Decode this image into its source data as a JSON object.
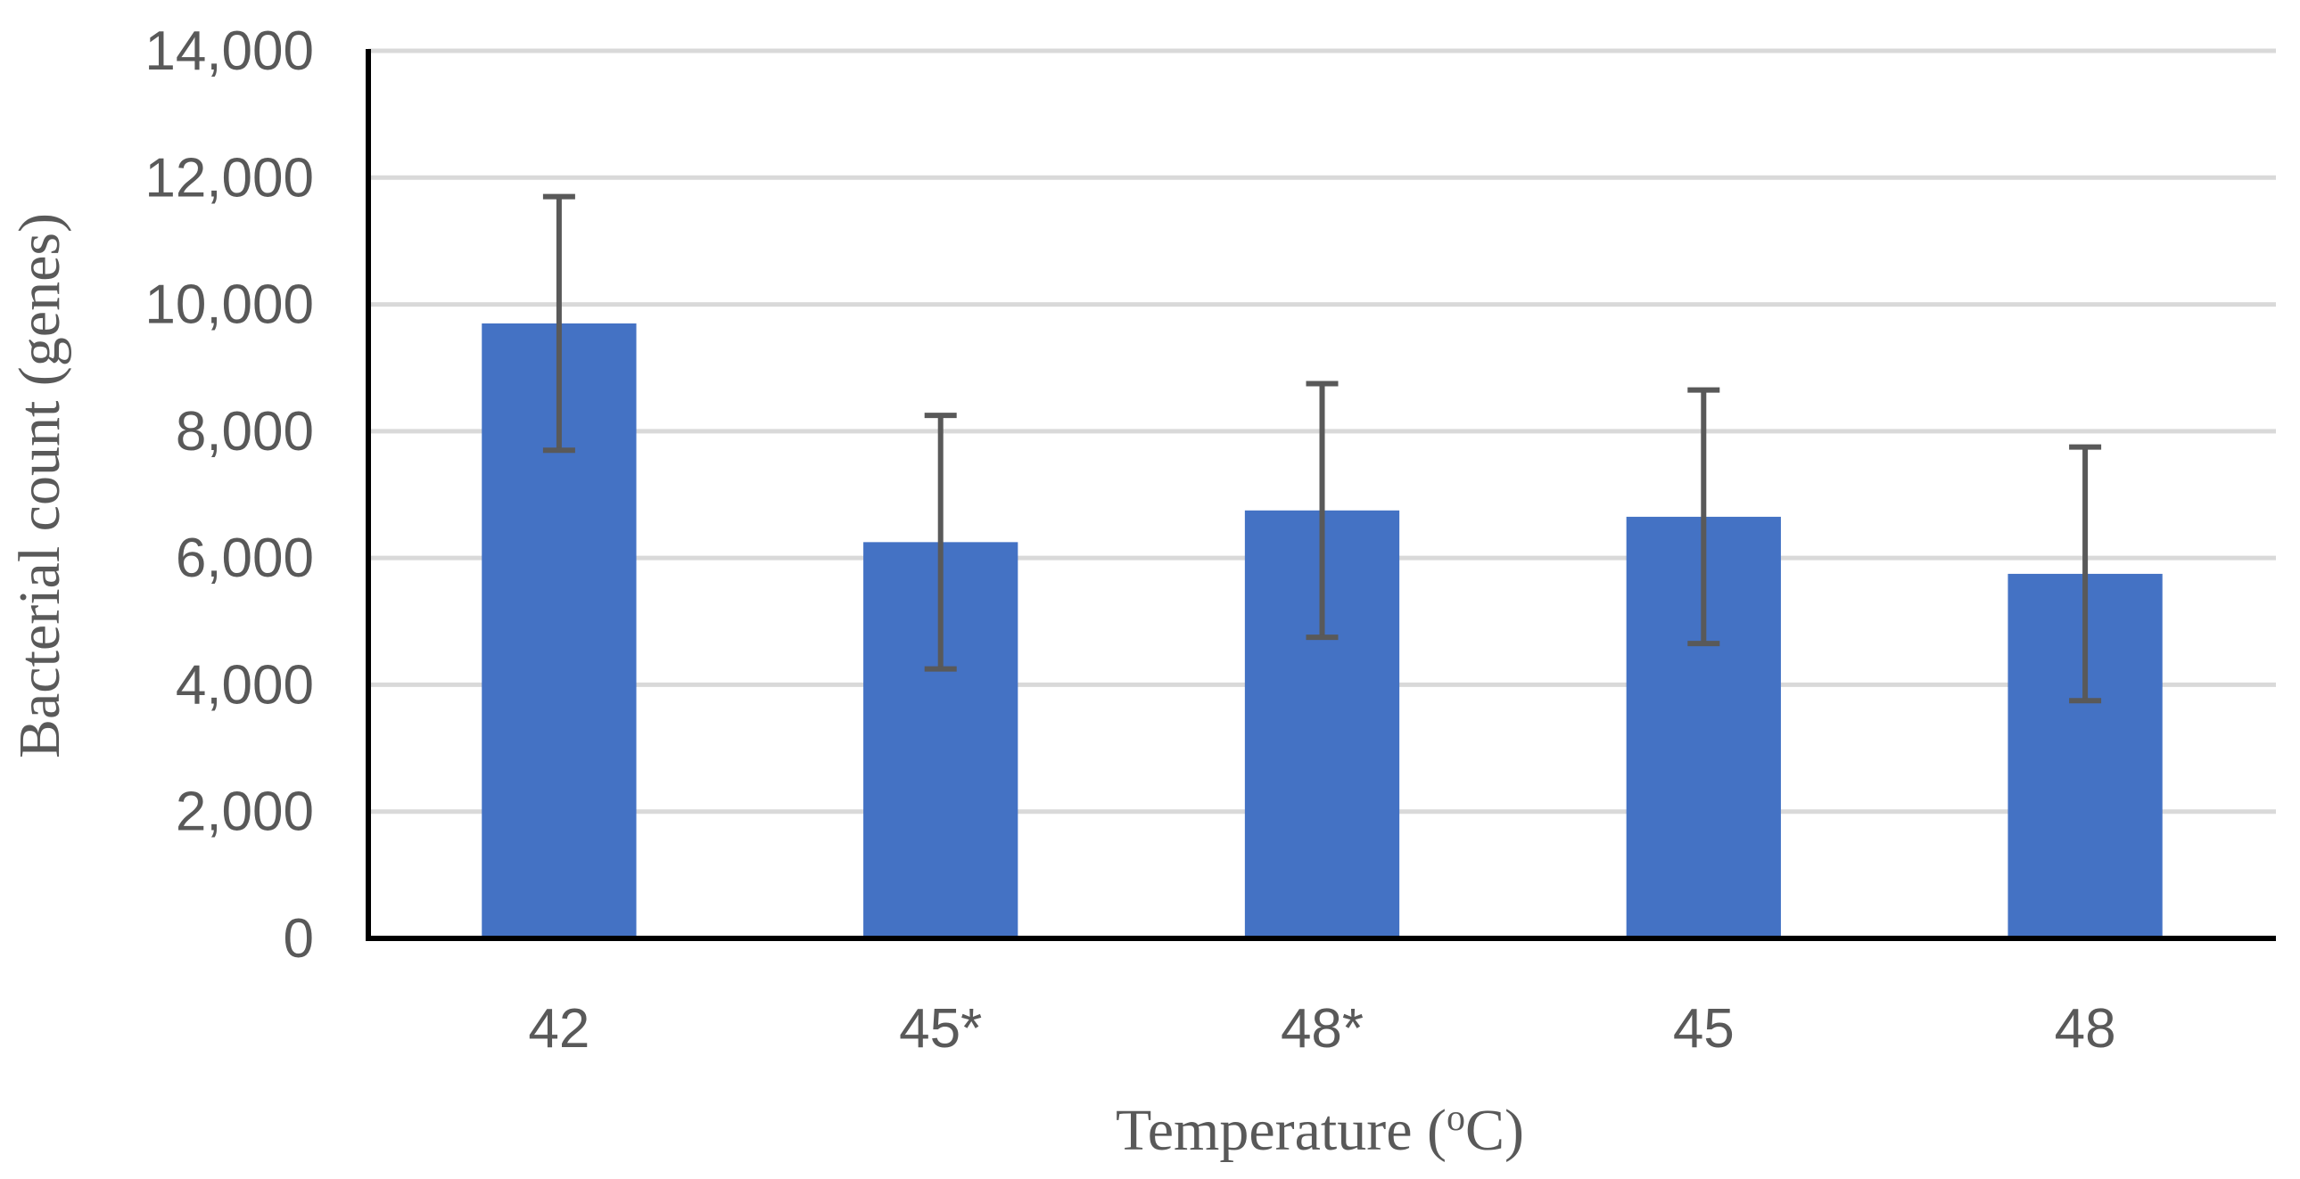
{
  "chart_data": {
    "type": "bar",
    "title": "",
    "xlabel_main": "Temperature (",
    "xlabel_sup": "o",
    "xlabel_tail": "C)",
    "ylabel": "Bacterial count (genes)",
    "categories": [
      "42",
      "45*",
      "48*",
      "45",
      "48"
    ],
    "values": [
      9700,
      6250,
      6750,
      6650,
      5750
    ],
    "error": [
      2000,
      2000,
      2000,
      2000,
      2000
    ],
    "ylim": [
      0,
      14000
    ],
    "yticks": [
      0,
      2000,
      4000,
      6000,
      8000,
      10000,
      12000,
      14000
    ],
    "ytick_labels": [
      "0",
      "2,000",
      "4,000",
      "6,000",
      "8,000",
      "10,000",
      "12,000",
      "14,000"
    ],
    "grid": true,
    "colors": {
      "bar": "#4472C4",
      "grid": "#D9D9D9",
      "axis": "#000000",
      "error_bar": "#595959",
      "text": "#595959"
    }
  }
}
